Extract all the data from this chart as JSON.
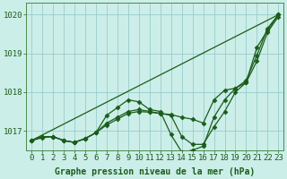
{
  "background_color": "#cceee8",
  "grid_color": "#99cccc",
  "line_color": "#1a5c1a",
  "xlabel": "Graphe pression niveau de la mer (hPa)",
  "ylim": [
    1016.5,
    1020.3
  ],
  "xlim": [
    -0.5,
    23.5
  ],
  "xticks": [
    0,
    1,
    2,
    3,
    4,
    5,
    6,
    7,
    8,
    9,
    10,
    11,
    12,
    13,
    14,
    15,
    16,
    17,
    18,
    19,
    20,
    21,
    22,
    23
  ],
  "yticks": [
    1017,
    1018,
    1019,
    1020
  ],
  "series": [
    {
      "x": [
        0,
        1,
        2,
        3,
        4,
        5,
        6,
        7,
        8,
        9,
        10,
        11,
        12,
        13,
        14,
        15,
        16,
        17,
        18,
        19,
        20,
        21,
        22,
        23
      ],
      "y": [
        1016.75,
        1016.85,
        1016.85,
        1016.75,
        1016.7,
        1016.8,
        1016.95,
        1017.2,
        1017.35,
        1017.5,
        1017.55,
        1017.5,
        1017.45,
        1017.4,
        1016.85,
        1016.65,
        1016.65,
        1017.1,
        1017.5,
        1018.0,
        1018.25,
        1018.8,
        1019.55,
        1019.95
      ],
      "marker": "D",
      "markersize": 2.5,
      "linewidth": 0.9
    },
    {
      "x": [
        0,
        1,
        2,
        3,
        4,
        5,
        6,
        7,
        8,
        9,
        10,
        11,
        12,
        13,
        14,
        15,
        16,
        17,
        18,
        19,
        20,
        21,
        22,
        23
      ],
      "y": [
        1016.75,
        1016.85,
        1016.85,
        1016.75,
        1016.7,
        1016.8,
        1016.95,
        1017.4,
        1017.6,
        1017.8,
        1017.75,
        1017.55,
        1017.5,
        1016.9,
        1016.45,
        1016.5,
        1016.6,
        1017.35,
        1017.8,
        1018.1,
        1018.25,
        1019.15,
        1019.6,
        1020.0
      ],
      "marker": "D",
      "markersize": 2.5,
      "linewidth": 0.9
    },
    {
      "x": [
        0,
        1,
        2,
        3,
        4,
        5,
        6,
        7,
        8,
        9,
        10,
        11,
        12,
        13,
        14,
        15,
        16,
        17,
        18,
        19,
        20,
        21,
        22,
        23
      ],
      "y": [
        1016.75,
        1016.82,
        1016.85,
        1016.75,
        1016.7,
        1016.8,
        1016.95,
        1017.15,
        1017.3,
        1017.45,
        1017.5,
        1017.48,
        1017.45,
        1017.42,
        1017.35,
        1017.3,
        1017.2,
        1017.8,
        1018.05,
        1018.1,
        1018.3,
        1018.95,
        1019.65,
        1020.0
      ],
      "marker": "D",
      "markersize": 2.5,
      "linewidth": 0.9
    },
    {
      "x": [
        0,
        23
      ],
      "y": [
        1016.75,
        1020.0
      ],
      "marker": null,
      "markersize": 0,
      "linewidth": 0.9
    }
  ],
  "title_fontsize": 7,
  "xlabel_fontsize": 7,
  "tick_fontsize": 6.5,
  "figsize": [
    3.2,
    2.0
  ],
  "dpi": 100
}
